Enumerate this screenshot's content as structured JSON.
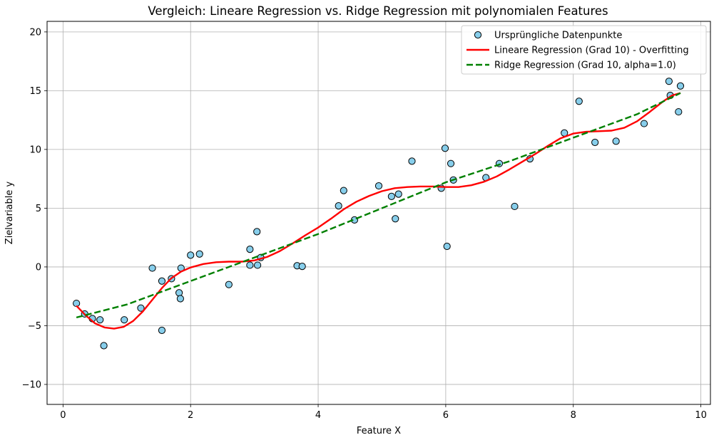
{
  "chart_data": {
    "type": "scatter",
    "title": "Vergleich: Lineare Regression vs. Ridge Regression mit polynomialen Features",
    "xlabel": "Feature X",
    "ylabel": "Zielvariable y",
    "xlim": [
      -0.25,
      10.15
    ],
    "ylim": [
      -11.7,
      20.9
    ],
    "xticks": [
      "0",
      "2",
      "4",
      "6",
      "8",
      "10"
    ],
    "yticks": [
      "−10",
      "−5",
      "0",
      "5",
      "10",
      "15",
      "20"
    ],
    "xtick_values": [
      0,
      2,
      4,
      6,
      8,
      10
    ],
    "ytick_values": [
      -10,
      -5,
      0,
      5,
      10,
      15,
      20
    ],
    "grid": true,
    "legend_position": "top-right",
    "series": [
      {
        "name": "Ursprüngliche Datenpunkte",
        "kind": "scatter",
        "color": "#87CEEB",
        "edge_color": "#000000",
        "points": [
          [
            0.21,
            -3.1
          ],
          [
            0.34,
            -4.0
          ],
          [
            0.46,
            -4.4
          ],
          [
            0.58,
            -4.5
          ],
          [
            0.64,
            -6.7
          ],
          [
            0.96,
            -4.5
          ],
          [
            1.22,
            -3.5
          ],
          [
            1.4,
            -0.1
          ],
          [
            1.55,
            -1.2
          ],
          [
            1.55,
            -5.4
          ],
          [
            1.7,
            -1.0
          ],
          [
            1.82,
            -2.2
          ],
          [
            1.84,
            -2.7
          ],
          [
            1.85,
            -0.1
          ],
          [
            2.0,
            1.0
          ],
          [
            2.14,
            1.1
          ],
          [
            2.6,
            -1.5
          ],
          [
            2.93,
            1.5
          ],
          [
            2.93,
            0.15
          ],
          [
            3.04,
            3.0
          ],
          [
            3.05,
            0.15
          ],
          [
            3.1,
            0.8
          ],
          [
            3.67,
            0.1
          ],
          [
            3.75,
            0.05
          ],
          [
            4.32,
            5.2
          ],
          [
            4.4,
            6.5
          ],
          [
            4.57,
            4.0
          ],
          [
            4.95,
            6.9
          ],
          [
            5.15,
            6.0
          ],
          [
            5.21,
            4.1
          ],
          [
            5.26,
            6.2
          ],
          [
            5.47,
            9.0
          ],
          [
            5.93,
            6.7
          ],
          [
            5.99,
            10.1
          ],
          [
            6.02,
            1.75
          ],
          [
            6.08,
            8.8
          ],
          [
            6.12,
            7.4
          ],
          [
            6.63,
            7.6
          ],
          [
            6.84,
            8.8
          ],
          [
            7.08,
            5.15
          ],
          [
            7.32,
            9.2
          ],
          [
            7.86,
            11.4
          ],
          [
            8.09,
            14.1
          ],
          [
            8.34,
            10.6
          ],
          [
            8.67,
            10.7
          ],
          [
            9.11,
            12.2
          ],
          [
            9.5,
            15.8
          ],
          [
            9.52,
            14.6
          ],
          [
            9.65,
            13.2
          ],
          [
            9.68,
            15.4
          ]
        ]
      },
      {
        "name": "Lineare Regression (Grad 10) - Overfitting",
        "kind": "line",
        "color": "#FF0000",
        "dash": "solid",
        "points": [
          [
            0.21,
            -3.3
          ],
          [
            0.35,
            -4.1
          ],
          [
            0.5,
            -4.8
          ],
          [
            0.65,
            -5.15
          ],
          [
            0.8,
            -5.25
          ],
          [
            0.95,
            -5.1
          ],
          [
            1.1,
            -4.6
          ],
          [
            1.25,
            -3.8
          ],
          [
            1.4,
            -2.8
          ],
          [
            1.55,
            -1.8
          ],
          [
            1.7,
            -0.95
          ],
          [
            1.85,
            -0.4
          ],
          [
            2.0,
            -0.05
          ],
          [
            2.2,
            0.25
          ],
          [
            2.4,
            0.4
          ],
          [
            2.6,
            0.45
          ],
          [
            2.8,
            0.45
          ],
          [
            3.0,
            0.55
          ],
          [
            3.2,
            0.85
          ],
          [
            3.4,
            1.35
          ],
          [
            3.6,
            2.0
          ],
          [
            3.8,
            2.7
          ],
          [
            4.0,
            3.35
          ],
          [
            4.2,
            4.1
          ],
          [
            4.4,
            4.9
          ],
          [
            4.6,
            5.55
          ],
          [
            4.8,
            6.05
          ],
          [
            5.0,
            6.45
          ],
          [
            5.2,
            6.7
          ],
          [
            5.4,
            6.8
          ],
          [
            5.6,
            6.85
          ],
          [
            5.8,
            6.85
          ],
          [
            6.0,
            6.8
          ],
          [
            6.2,
            6.8
          ],
          [
            6.4,
            6.95
          ],
          [
            6.6,
            7.25
          ],
          [
            6.8,
            7.7
          ],
          [
            7.0,
            8.3
          ],
          [
            7.2,
            8.95
          ],
          [
            7.4,
            9.6
          ],
          [
            7.6,
            10.3
          ],
          [
            7.8,
            10.95
          ],
          [
            8.0,
            11.35
          ],
          [
            8.2,
            11.5
          ],
          [
            8.4,
            11.55
          ],
          [
            8.6,
            11.6
          ],
          [
            8.8,
            11.85
          ],
          [
            9.0,
            12.4
          ],
          [
            9.2,
            13.2
          ],
          [
            9.4,
            14.05
          ],
          [
            9.55,
            14.6
          ],
          [
            9.68,
            14.8
          ]
        ]
      },
      {
        "name": "Ridge Regression (Grad 10, alpha=1.0)",
        "kind": "line",
        "color": "#008000",
        "dash": "dashed",
        "points": [
          [
            0.21,
            -4.3
          ],
          [
            1.0,
            -3.2
          ],
          [
            2.0,
            -1.2
          ],
          [
            3.0,
            0.8
          ],
          [
            4.0,
            2.8
          ],
          [
            5.0,
            5.0
          ],
          [
            6.0,
            7.2
          ],
          [
            7.0,
            9.0
          ],
          [
            8.0,
            11.0
          ],
          [
            9.0,
            13.0
          ],
          [
            9.68,
            14.8
          ]
        ]
      }
    ]
  }
}
